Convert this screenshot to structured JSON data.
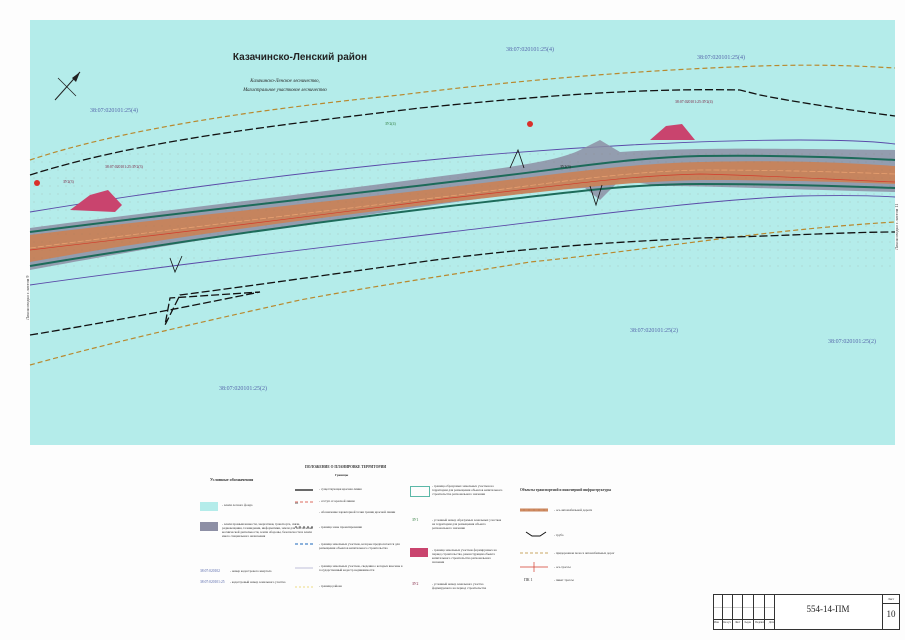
{
  "map": {
    "title": "Казачинско-Ленский район",
    "subtitle1": "Казачинско-Ленское лесничество,",
    "subtitle2": "Магистральное участковое лесничество",
    "parcels": [
      "38:07:020101:25(4)",
      "38:07:020101:25(4)",
      "38:07:020101:25(4)",
      "38:07:020101:25(2)",
      "38:07:020101:25(2)",
      "38:07:020101:25(2)"
    ],
    "zone_labels": [
      "38:07:020101:25:ЗУ2(3)",
      "38:07:020101:25:ЗУ2(4)",
      "ЗУ2(3)",
      "ЗУ1(3)",
      "ЗУ2(4)"
    ],
    "side_label_left": "Линия сводки с листом 9",
    "side_label_right": "Линия сводки с листом 11",
    "colors": {
      "forest": "#b4ecea",
      "road": "#c7835a",
      "zone": "#8d8fa5",
      "reserve": "#c9446e",
      "boundary": "#111111",
      "dashed": "#b8892f"
    }
  },
  "legend": {
    "title": "Условные обозначения",
    "items": [
      "- земли лесного фонда",
      "- земли промышленности, энергетики, транспорта, связи, радиовещания, телевидения, информатики, земли для обеспечения космической деятельности, земли обороны, безопасности и земли иного специального назначения",
      "- номер кадастрового квартала",
      "- кадастровый номер земельного участка"
    ],
    "item_codes": [
      "38:07:020102",
      "38:07:020101:25"
    ]
  },
  "existing": {
    "title": "ПОЛОЖЕНИЕ О ПЛАНИРОВКЕ ТЕРРИТОРИИ",
    "subtitle": "Границы",
    "items": [
      "- существующая красная линия",
      "- отступ от красной линии",
      "- обозначение характерной точки границ красной линии",
      "- граница зоны проектирования",
      "- граница земельных участков, которые предполагается для размещения объектов капитального строительства",
      "- граница земельных участков, сведения о которых внесены в государственный кадастр недвижимости",
      "- граница района"
    ],
    "right_items": [
      "- граница образуемых земельных участков на территории для размещения объектов капитального строительства регионального значения",
      "- условный номер образуемых земельных участков на территории для размещения объекта регионального значения",
      "- граница земельных участков формируемых на период строительства, реконструкции объекта капитального строительства регионального значения",
      "- условный номер земельного участка формируемого на период строительства"
    ],
    "right_codes": [
      "ЗУ1",
      "ЗУ2"
    ],
    "point_code": "н1"
  },
  "transport": {
    "title": "Объекты транспортной и инженерной инфраструктуры",
    "items": [
      "- ось автомобильной дороги",
      "- труба",
      "- придорожная полоса автомобильных дорог",
      "- ось трассы",
      "- пикет трассы"
    ],
    "pk_label": "ПК 1"
  },
  "stamp": {
    "code": "554-14-ПМ",
    "sheet_label": "Лист",
    "sheet_number": "10",
    "columns": [
      "Изм.",
      "Кол.уч",
      "Лист",
      "№док",
      "Подпись",
      "Дата"
    ]
  }
}
